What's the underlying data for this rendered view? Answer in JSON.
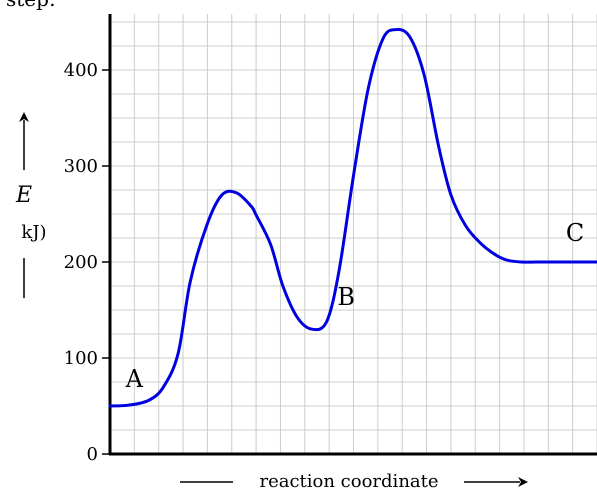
{
  "header_fragment": "step:",
  "chart_data": {
    "type": "line",
    "title": "",
    "xlabel": "reaction coordinate",
    "ylabel": "E",
    "ylabel_unit_fragment": "kJ)",
    "ylim": [
      0,
      450
    ],
    "yticks": [
      0,
      100,
      200,
      300,
      400
    ],
    "grid": true,
    "x_minor_divisions": 20,
    "y_minor_step": 25,
    "line_color": "#0000e0",
    "axis_color": "#000000",
    "grid_color": "#cccccc",
    "series": [
      {
        "x": [
          0,
          0.8,
          1.6,
          2.2,
          2.8,
          3.3,
          4.0,
          4.6,
          5.2,
          5.8,
          6.0,
          6.6,
          7.1,
          7.7,
          8.3,
          8.9,
          9.4,
          10.0,
          10.6,
          11.2,
          11.7,
          12.3,
          12.9,
          13.5,
          14.0,
          14.6,
          15.2,
          15.8,
          16.3,
          16.9,
          17.5,
          18.1,
          18.6,
          19.2,
          20.0
        ],
        "values": [
          50,
          51,
          56,
          70,
          105,
          180,
          240,
          270,
          272,
          258,
          249,
          218,
          175,
          142,
          130,
          138,
          190,
          290,
          380,
          432,
          442,
          435,
          395,
          320,
          270,
          238,
          220,
          208,
          202,
          200,
          200,
          200,
          200,
          200,
          200
        ]
      }
    ],
    "point_labels": [
      {
        "label": "A",
        "x": 1.0,
        "y": 70
      },
      {
        "label": "B",
        "x": 9.7,
        "y": 155
      },
      {
        "label": "C",
        "x": 19.1,
        "y": 222
      }
    ]
  }
}
